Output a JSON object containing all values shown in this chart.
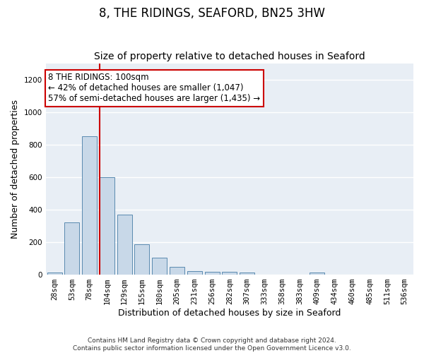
{
  "title": "8, THE RIDINGS, SEAFORD, BN25 3HW",
  "subtitle": "Size of property relative to detached houses in Seaford",
  "xlabel": "Distribution of detached houses by size in Seaford",
  "ylabel": "Number of detached properties",
  "categories": [
    "28sqm",
    "53sqm",
    "78sqm",
    "104sqm",
    "129sqm",
    "155sqm",
    "180sqm",
    "205sqm",
    "231sqm",
    "256sqm",
    "282sqm",
    "307sqm",
    "333sqm",
    "358sqm",
    "383sqm",
    "409sqm",
    "434sqm",
    "460sqm",
    "485sqm",
    "511sqm",
    "536sqm"
  ],
  "values": [
    15,
    320,
    850,
    600,
    370,
    185,
    105,
    48,
    22,
    18,
    18,
    12,
    0,
    0,
    0,
    12,
    0,
    0,
    0,
    0,
    0
  ],
  "bar_color": "#c8d8e8",
  "bar_edge_color": "#5a8ab0",
  "property_line_x": 3,
  "annotation_text": "8 THE RIDINGS: 100sqm\n← 42% of detached houses are smaller (1,047)\n57% of semi-detached houses are larger (1,435) →",
  "annotation_box_color": "#ffffff",
  "annotation_box_edge_color": "#cc0000",
  "red_line_color": "#cc0000",
  "ylim": [
    0,
    1300
  ],
  "yticks": [
    0,
    200,
    400,
    600,
    800,
    1000,
    1200
  ],
  "background_color": "#e8eef5",
  "grid_color": "#ffffff",
  "footer": "Contains HM Land Registry data © Crown copyright and database right 2024.\nContains public sector information licensed under the Open Government Licence v3.0.",
  "title_fontsize": 12,
  "subtitle_fontsize": 10,
  "xlabel_fontsize": 9,
  "ylabel_fontsize": 9,
  "tick_fontsize": 7.5,
  "annotation_fontsize": 8.5,
  "footer_fontsize": 6.5
}
